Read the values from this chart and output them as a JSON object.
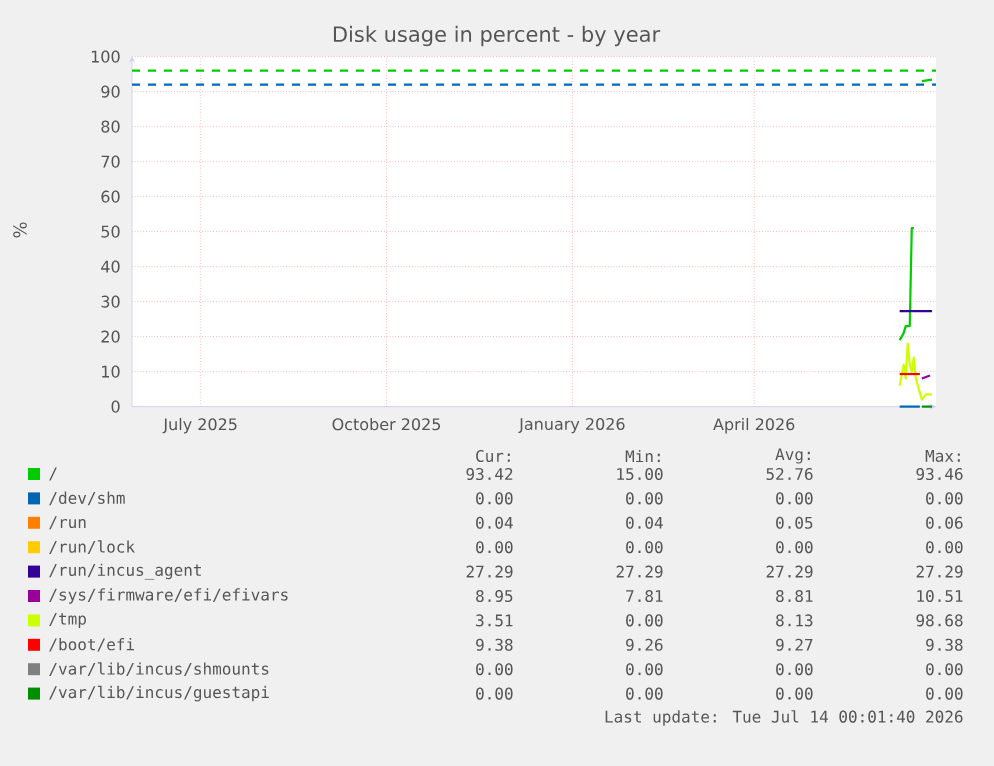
{
  "chart_data": {
    "type": "line",
    "title": "Disk usage in percent - by year",
    "ylabel": "%",
    "xlim": [
      "2025-06-11",
      "2026-07-14"
    ],
    "xticks": [
      {
        "value": "2025-07-15",
        "label": "July 2025"
      },
      {
        "value": "2025-10-15",
        "label": "October 2025"
      },
      {
        "value": "2026-01-15",
        "label": "January 2026"
      },
      {
        "value": "2026-04-15",
        "label": "April 2026"
      }
    ],
    "ylim": [
      0,
      100
    ],
    "yticks": [
      0,
      10,
      20,
      30,
      40,
      50,
      60,
      70,
      80,
      90,
      100
    ],
    "grid": true,
    "legend": "bottom",
    "series": [
      {
        "name": "/",
        "color": "#00cc00",
        "x": [
          "2026-06-26",
          "2026-06-27",
          "2026-06-28",
          "2026-06-29",
          "2026-06-30",
          "2026-07-01",
          "2026-07-02",
          "2026-07-03",
          "2026-07-05",
          "2026-07-07",
          "2026-07-12"
        ],
        "values": [
          19,
          20,
          21,
          23,
          23,
          23,
          51,
          51,
          null,
          93,
          93.4
        ]
      },
      {
        "name": "/dev/shm",
        "color": "#0066b3",
        "x": [
          "2026-06-26",
          "2026-07-06"
        ],
        "values": [
          0,
          0
        ]
      },
      {
        "name": "/run",
        "color": "#ff8000"
      },
      {
        "name": "/run/lock",
        "color": "#ffcc00"
      },
      {
        "name": "/run/incus_agent",
        "color": "#330099",
        "x": [
          "2026-06-26",
          "2026-07-12"
        ],
        "values": [
          27.3,
          27.3
        ]
      },
      {
        "name": "/sys/firmware/efi/efivars",
        "color": "#990099",
        "x": [
          "2026-07-07",
          "2026-07-11"
        ],
        "values": [
          8,
          8.9
        ]
      },
      {
        "name": "/tmp",
        "color": "#ccff00",
        "x": [
          "2026-06-26",
          "2026-06-27",
          "2026-06-28",
          "2026-06-29",
          "2026-06-30",
          "2026-07-01",
          "2026-07-02",
          "2026-07-03",
          "2026-07-04",
          "2026-07-07",
          "2026-07-09",
          "2026-07-12"
        ],
        "values": [
          6,
          9,
          12,
          8,
          18,
          12,
          10,
          14,
          8,
          2,
          3.5,
          3.5
        ]
      },
      {
        "name": "/boot/efi",
        "color": "#ff0000",
        "x": [
          "2026-06-26",
          "2026-07-06"
        ],
        "values": [
          9.3,
          9.3
        ]
      },
      {
        "name": "/var/lib/incus/shmounts",
        "color": "#808080"
      },
      {
        "name": "/var/lib/incus/guestapi",
        "color": "#008f00",
        "x": [
          "2026-07-07",
          "2026-07-12"
        ],
        "values": [
          0,
          0
        ]
      }
    ],
    "ref_lines": [
      {
        "axis": "y",
        "value": 96,
        "color": "#00cc00",
        "line_style": "dashed"
      },
      {
        "axis": "y",
        "value": 92,
        "color": "#0066b3",
        "line_style": "dashed"
      }
    ],
    "annotations": [
      "Cur:",
      "Min:",
      "Avg:",
      "Max:",
      "93.42",
      "15.00",
      "52.76",
      "93.46",
      "0.00",
      "0.00",
      "0.00",
      "0.00",
      "0.04",
      "0.04",
      "0.05",
      "0.06",
      "0.00",
      "0.00",
      "0.00",
      "0.00",
      "27.29",
      "27.29",
      "27.29",
      "27.29",
      "8.95",
      "7.81",
      "8.81",
      "10.51",
      "3.51",
      "0.00",
      "8.13",
      "98.68",
      "9.38",
      "9.26",
      "9.27",
      "9.38",
      "0.00",
      "0.00",
      "0.00",
      "0.00",
      "0.00",
      "0.00",
      "0.00",
      "0.00",
      "Last update: Tue Jul 14 00:01:40 2026"
    ]
  }
}
